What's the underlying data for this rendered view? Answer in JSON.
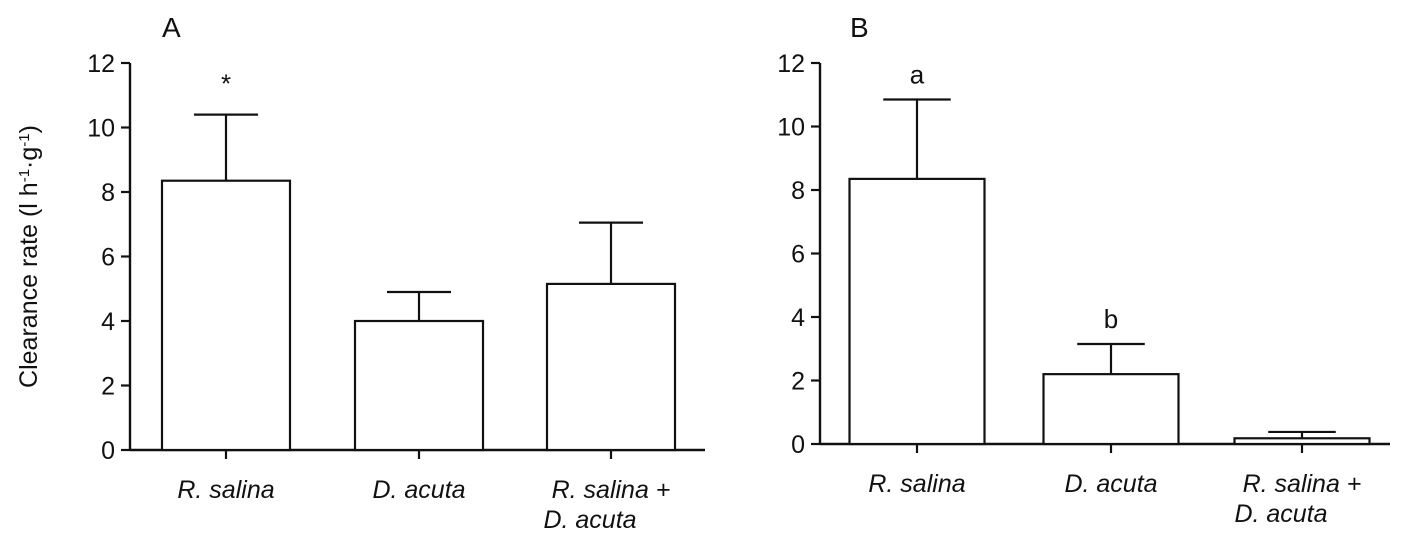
{
  "chart_data": [
    {
      "type": "bar",
      "panel_label": "A",
      "ylabel_parts": [
        "Clearance rate (l h",
        "-1",
        "·g",
        "-1",
        ")"
      ],
      "ylim": [
        0,
        12
      ],
      "yticks": [
        "0",
        "2",
        "4",
        "6",
        "8",
        "10",
        "12"
      ],
      "categories": [
        {
          "lines": [
            "R. salina"
          ]
        },
        {
          "lines": [
            "D. acuta"
          ]
        },
        {
          "lines": [
            "R. salina +",
            "D. acuta"
          ]
        }
      ],
      "values": [
        8.35,
        4.0,
        5.15
      ],
      "errors": [
        2.05,
        0.9,
        1.9
      ],
      "annotations": [
        "*",
        "",
        ""
      ]
    },
    {
      "type": "bar",
      "panel_label": "B",
      "ylim": [
        0,
        12
      ],
      "yticks": [
        "0",
        "2",
        "4",
        "6",
        "8",
        "10",
        "12"
      ],
      "categories": [
        {
          "lines": [
            "R. salina"
          ]
        },
        {
          "lines": [
            "D. acuta"
          ]
        },
        {
          "lines": [
            "R. salina +",
            "D. acuta"
          ]
        }
      ],
      "values": [
        8.35,
        2.2,
        0.18
      ],
      "errors": [
        2.5,
        0.95,
        0.2
      ],
      "annotations": [
        "a",
        "b",
        ""
      ]
    }
  ]
}
